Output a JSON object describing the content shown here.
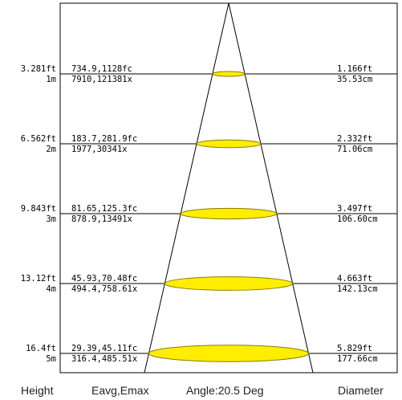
{
  "footer": {
    "height_label": "Height",
    "eavg_label": "Eavg,Emax",
    "angle_label": "Angle:20.5 Deg",
    "diameter_label": "Diameter"
  },
  "colors": {
    "spot_fill": "#ffee00",
    "spot_stroke": "#8a7a00",
    "line": "#000000"
  },
  "rows": [
    {
      "height_ft": "3.281ft",
      "height_m": "1m",
      "lux_fc": "734.9,1128fc",
      "lux_lx": "7910,121381x",
      "diameter_ft": "1.166ft",
      "diameter_cm": "35.53cm"
    },
    {
      "height_ft": "6.562ft",
      "height_m": "2m",
      "lux_fc": "183.7,281.9fc",
      "lux_lx": "1977,30341x",
      "diameter_ft": "2.332ft",
      "diameter_cm": "71.06cm"
    },
    {
      "height_ft": "9.843ft",
      "height_m": "3m",
      "lux_fc": "81.65,125.3fc",
      "lux_lx": "878.9,13491x",
      "diameter_ft": "3.497ft",
      "diameter_cm": "106.60cm"
    },
    {
      "height_ft": "13.12ft",
      "height_m": "4m",
      "lux_fc": "45.93,70.48fc",
      "lux_lx": "494.4,758.61x",
      "diameter_ft": "4.663ft",
      "diameter_cm": "142.13cm"
    },
    {
      "height_ft": "16.4ft",
      "height_m": "5m",
      "lux_fc": "29.39,45.11fc",
      "lux_lx": "316.4,485.51x",
      "diameter_ft": "5.829ft",
      "diameter_cm": "177.66cm"
    }
  ]
}
